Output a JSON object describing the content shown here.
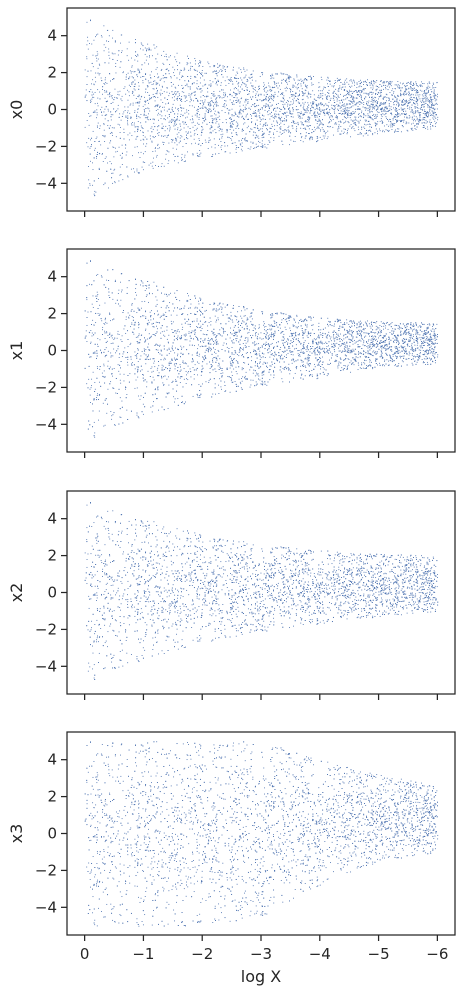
{
  "chart_data": [
    {
      "type": "scatter",
      "ylabel": "x0",
      "xlabel": "",
      "x_ticks": [
        "0",
        "−1",
        "−2",
        "−3",
        "−4",
        "−5",
        "−6"
      ],
      "x_tick_values": [
        0,
        -1,
        -2,
        -3,
        -4,
        -5,
        -6
      ],
      "y_ticks": [
        "4",
        "2",
        "0",
        "−2",
        "−4"
      ],
      "y_tick_values": [
        4,
        2,
        0,
        -2,
        -4
      ],
      "xlim": [
        0.3,
        -6.3
      ],
      "ylim": [
        -5.5,
        5.5
      ],
      "color": "#4c72b0",
      "point_count": 4200,
      "band_envelope": {
        "x": [
          0,
          -1,
          -2,
          -3,
          -4,
          -5,
          -6
        ],
        "upper": [
          5.0,
          3.7,
          2.7,
          2.1,
          1.8,
          1.6,
          1.5
        ],
        "lower": [
          -5.0,
          -3.3,
          -2.6,
          -2.1,
          -1.7,
          -1.3,
          -1.0
        ],
        "center": [
          0.0,
          0.1,
          0.15,
          0.2,
          0.25,
          0.3,
          0.35
        ]
      }
    },
    {
      "type": "scatter",
      "ylabel": "x1",
      "xlabel": "",
      "x_ticks": [
        "0",
        "−1",
        "−2",
        "−3",
        "−4",
        "−5",
        "−6"
      ],
      "x_tick_values": [
        0,
        -1,
        -2,
        -3,
        -4,
        -5,
        -6
      ],
      "y_ticks": [
        "4",
        "2",
        "0",
        "−2",
        "−4"
      ],
      "y_tick_values": [
        4,
        2,
        0,
        -2,
        -4
      ],
      "xlim": [
        0.3,
        -6.3
      ],
      "ylim": [
        -5.5,
        5.5
      ],
      "color": "#4c72b0",
      "point_count": 4200,
      "band_envelope": {
        "x": [
          0,
          -1,
          -2,
          -3,
          -4,
          -5,
          -6
        ],
        "upper": [
          5.0,
          3.9,
          2.9,
          2.2,
          1.8,
          1.6,
          1.5
        ],
        "lower": [
          -5.0,
          -3.5,
          -2.6,
          -1.9,
          -1.5,
          -0.9,
          -0.7
        ],
        "center": [
          0.0,
          0.2,
          0.3,
          0.35,
          0.4,
          0.45,
          0.45
        ]
      }
    },
    {
      "type": "scatter",
      "ylabel": "x2",
      "xlabel": "",
      "x_ticks": [
        "0",
        "−1",
        "−2",
        "−3",
        "−4",
        "−5",
        "−6"
      ],
      "x_tick_values": [
        0,
        -1,
        -2,
        -3,
        -4,
        -5,
        -6
      ],
      "y_ticks": [
        "4",
        "2",
        "0",
        "−2",
        "−4"
      ],
      "y_tick_values": [
        4,
        2,
        0,
        -2,
        -4
      ],
      "xlim": [
        0.3,
        -6.3
      ],
      "ylim": [
        -5.5,
        5.5
      ],
      "color": "#4c72b0",
      "point_count": 4200,
      "band_envelope": {
        "x": [
          0,
          -1,
          -2,
          -3,
          -4,
          -5,
          -6
        ],
        "upper": [
          5.0,
          4.0,
          3.2,
          2.6,
          2.3,
          2.1,
          2.0
        ],
        "lower": [
          -5.0,
          -3.6,
          -2.7,
          -2.1,
          -1.7,
          -1.3,
          -1.0
        ],
        "center": [
          0.0,
          0.2,
          0.3,
          0.35,
          0.4,
          0.4,
          0.4
        ]
      }
    },
    {
      "type": "scatter",
      "ylabel": "x3",
      "xlabel": "log X",
      "x_ticks": [
        "0",
        "−1",
        "−2",
        "−3",
        "−4",
        "−5",
        "−6"
      ],
      "x_tick_values": [
        0,
        -1,
        -2,
        -3,
        -4,
        -5,
        -6
      ],
      "y_ticks": [
        "4",
        "2",
        "0",
        "−2",
        "−4"
      ],
      "y_tick_values": [
        4,
        2,
        0,
        -2,
        -4
      ],
      "xlim": [
        0.3,
        -6.3
      ],
      "ylim": [
        -5.5,
        5.5
      ],
      "color": "#4c72b0",
      "point_count": 4200,
      "band_envelope": {
        "x": [
          0,
          -1,
          -2,
          -3,
          -4,
          -5,
          -6
        ],
        "upper": [
          5.0,
          5.0,
          5.0,
          5.0,
          4.0,
          3.2,
          2.6
        ],
        "lower": [
          -5.0,
          -5.0,
          -5.0,
          -4.5,
          -2.8,
          -1.5,
          -1.0
        ],
        "center": [
          0.0,
          0.0,
          0.0,
          0.3,
          0.6,
          0.9,
          1.0
        ]
      }
    }
  ]
}
